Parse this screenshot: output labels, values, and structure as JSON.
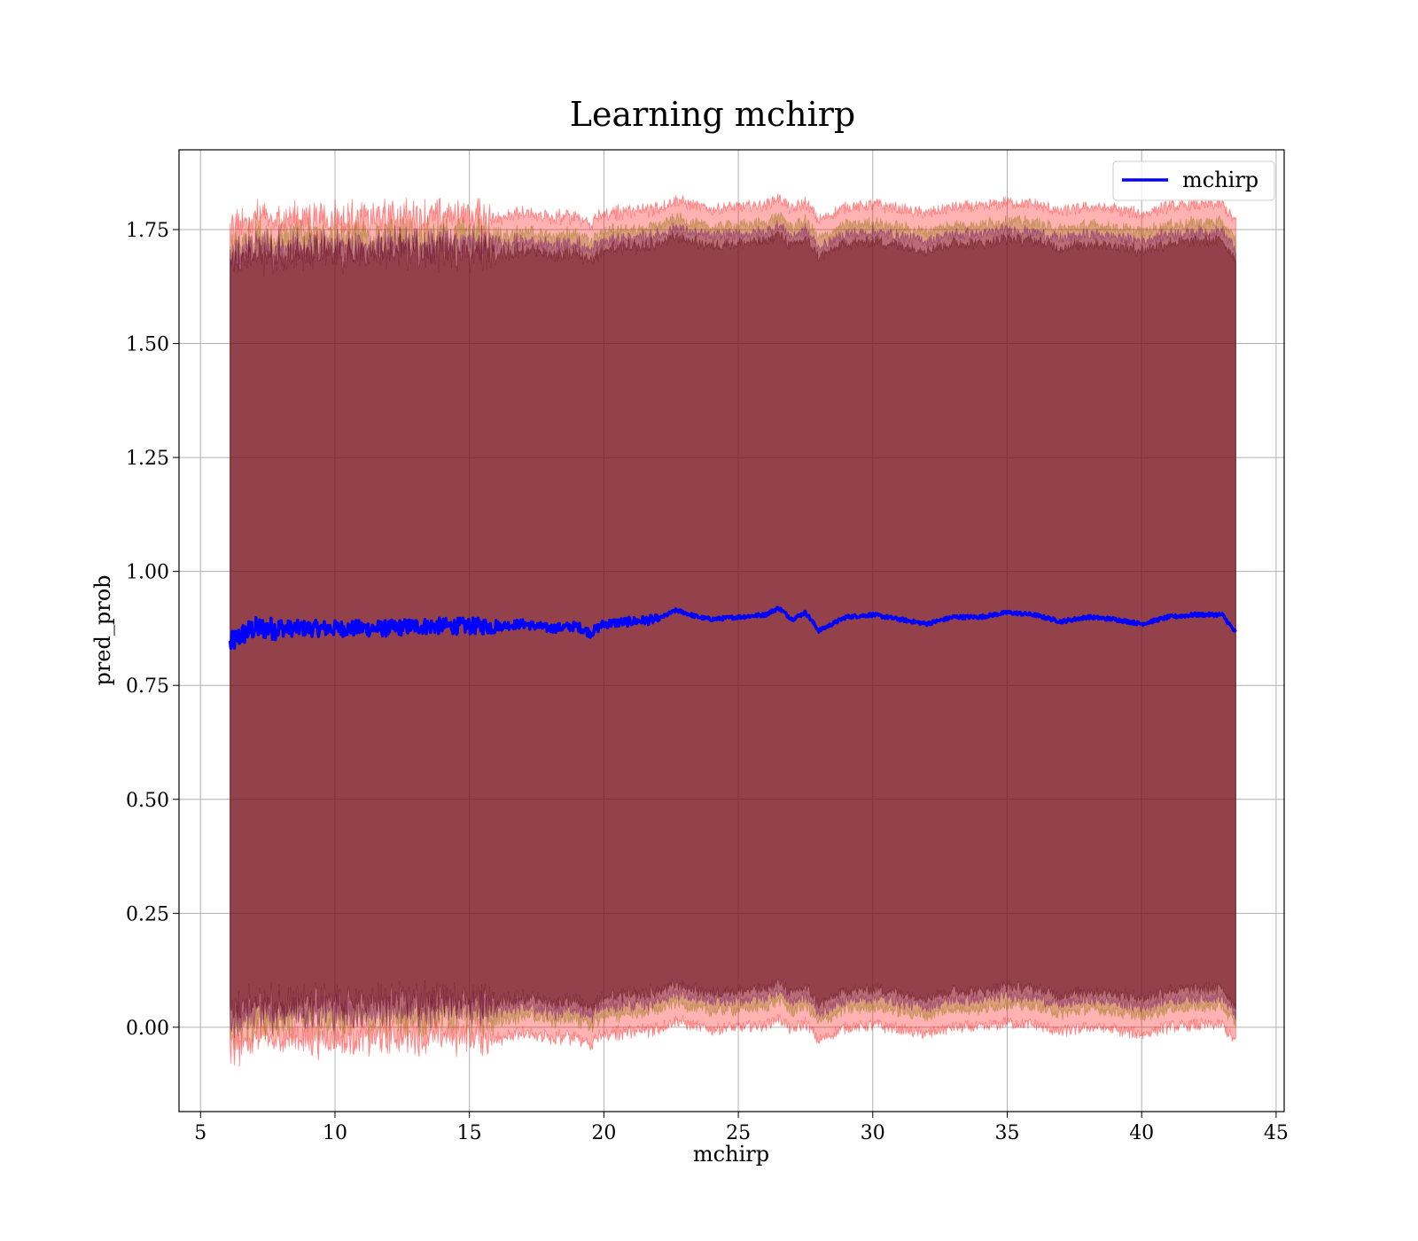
{
  "chart_data": {
    "type": "line",
    "title": "Learning mchirp",
    "xlabel": "mchirp",
    "ylabel": "pred_prob",
    "xlim": [
      4.2,
      45.3
    ],
    "ylim": [
      -0.185,
      1.925
    ],
    "x_ticks": [
      5,
      10,
      15,
      20,
      25,
      30,
      35,
      40,
      45
    ],
    "x_tick_labels": [
      "5",
      "10",
      "15",
      "20",
      "25",
      "30",
      "35",
      "40",
      "45"
    ],
    "y_ticks": [
      0.0,
      0.25,
      0.5,
      0.75,
      1.0,
      1.25,
      1.5,
      1.75
    ],
    "y_tick_labels": [
      "0.00",
      "0.25",
      "0.50",
      "0.75",
      "1.00",
      "1.25",
      "1.50",
      "1.75"
    ],
    "grid": true,
    "legend": {
      "position": "top-right",
      "entries": [
        "mchirp"
      ]
    },
    "x_range": [
      6.1,
      43.5
    ],
    "series": [
      {
        "name": "mchirp",
        "color": "#0000ff",
        "x": [
          6.1,
          6.5,
          7.0,
          8.0,
          9.0,
          10.0,
          11.0,
          12.0,
          13.0,
          14.0,
          15.0,
          16.0,
          17.0,
          18.0,
          19.0,
          19.5,
          20.0,
          21.0,
          22.0,
          22.7,
          23.5,
          24.0,
          25.0,
          26.0,
          26.5,
          27.0,
          27.5,
          28.0,
          29.0,
          30.0,
          31.0,
          32.0,
          33.0,
          34.0,
          35.0,
          36.0,
          37.0,
          38.0,
          39.0,
          40.0,
          41.0,
          42.0,
          43.0,
          43.5
        ],
        "mean": [
          0.84,
          0.86,
          0.875,
          0.875,
          0.875,
          0.875,
          0.875,
          0.875,
          0.88,
          0.88,
          0.88,
          0.88,
          0.885,
          0.875,
          0.88,
          0.865,
          0.885,
          0.89,
          0.895,
          0.915,
          0.9,
          0.895,
          0.9,
          0.905,
          0.92,
          0.895,
          0.91,
          0.87,
          0.9,
          0.905,
          0.895,
          0.885,
          0.9,
          0.9,
          0.91,
          0.905,
          0.89,
          0.9,
          0.895,
          0.885,
          0.9,
          0.905,
          0.905,
          0.865
        ]
      }
    ],
    "bands": [
      {
        "color": "#ff0000",
        "opacity": 0.3,
        "half_width": 0.9
      },
      {
        "color": "#8b7000",
        "opacity": 0.3,
        "half_width": 0.86
      },
      {
        "color": "#6a006a",
        "opacity": 0.3,
        "half_width": 0.84
      },
      {
        "color": "#5a0010",
        "opacity": 0.4,
        "half_width": 0.82
      }
    ]
  }
}
